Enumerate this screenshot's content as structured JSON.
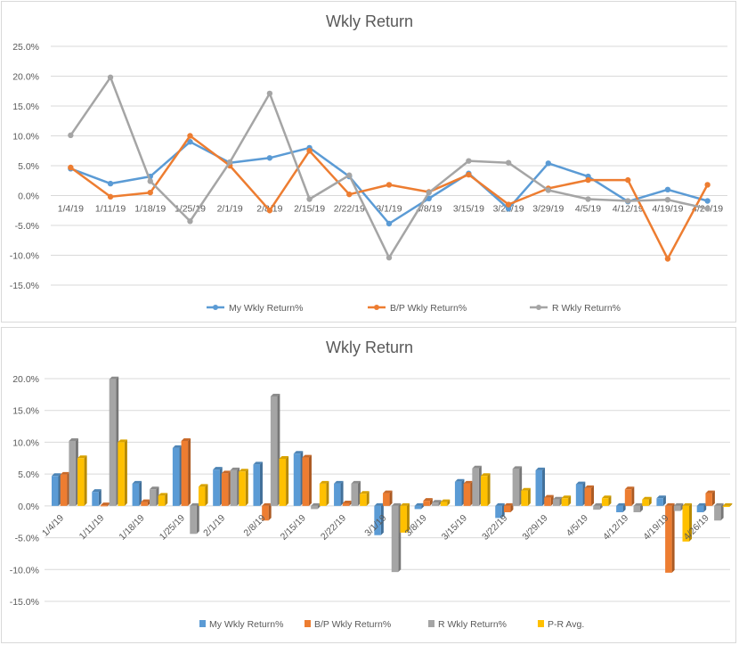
{
  "colors": {
    "my": "#5B9BD5",
    "bp": "#ED7D31",
    "r": "#A5A5A5",
    "pr": "#FFC000",
    "grid": "#d9d9d9"
  },
  "chart_data": [
    {
      "type": "line",
      "title": "Wkly Return",
      "categories": [
        "1/4/19",
        "1/11/19",
        "1/18/19",
        "1/25/19",
        "2/1/19",
        "2/8/19",
        "2/15/19",
        "2/22/19",
        "3/1/19",
        "3/8/19",
        "3/15/19",
        "3/22/19",
        "3/29/19",
        "4/5/19",
        "4/12/19",
        "4/19/19",
        "4/26/19"
      ],
      "y_ticks": [
        "25.0%",
        "20.0%",
        "15.0%",
        "10.0%",
        "5.0%",
        "0.0%",
        "-5.0%",
        "-10.0%",
        "-15.0%"
      ],
      "ylim": [
        -15,
        25
      ],
      "grid": true,
      "legend_position": "bottom",
      "series": [
        {
          "name": "My Wkly Return%",
          "color_key": "my",
          "values": [
            4.5,
            2.0,
            3.2,
            9.0,
            5.5,
            6.3,
            8.0,
            3.2,
            -4.7,
            -0.5,
            3.7,
            -2.2,
            5.4,
            3.2,
            -1.0,
            1.0,
            -0.9
          ]
        },
        {
          "name": "B/P Wkly Return%",
          "color_key": "bp",
          "values": [
            4.7,
            -0.2,
            0.5,
            10.0,
            5.0,
            -2.5,
            7.5,
            0.2,
            1.8,
            0.6,
            3.5,
            -1.5,
            1.2,
            2.6,
            2.6,
            -10.6,
            1.8
          ]
        },
        {
          "name": "R Wkly Return%",
          "color_key": "r",
          "values": [
            10.1,
            19.8,
            2.4,
            -4.3,
            5.6,
            17.1,
            -0.6,
            3.4,
            -10.4,
            0.5,
            5.8,
            5.5,
            0.9,
            -0.6,
            -0.9,
            -0.7,
            -2.2
          ]
        }
      ]
    },
    {
      "type": "bar",
      "title": "Wkly Return",
      "categories": [
        "1/4/19",
        "1/11/19",
        "1/18/19",
        "1/25/19",
        "2/1/19",
        "2/8/19",
        "2/15/19",
        "2/22/19",
        "3/1/19",
        "3/8/19",
        "3/15/19",
        "3/22/19",
        "3/29/19",
        "4/5/19",
        "4/12/19",
        "4/19/19",
        "4/26/19"
      ],
      "y_ticks": [
        "20.0%",
        "15.0%",
        "10.0%",
        "5.0%",
        "0.0%",
        "-5.0%",
        "-10.0%",
        "-15.0%"
      ],
      "ylim": [
        -15,
        20
      ],
      "grid": true,
      "legend_position": "bottom",
      "series": [
        {
          "name": "My Wkly Return%",
          "color_key": "my",
          "values": [
            4.7,
            2.2,
            3.5,
            9.1,
            5.7,
            6.5,
            8.2,
            3.5,
            -4.6,
            -0.5,
            3.8,
            -1.9,
            5.6,
            3.4,
            -1.0,
            1.2,
            -1.0
          ]
        },
        {
          "name": "B/P Wkly Return%",
          "color_key": "bp",
          "values": [
            4.9,
            0.1,
            0.6,
            10.2,
            5.1,
            -2.3,
            7.6,
            0.4,
            2.0,
            0.8,
            3.5,
            -1.0,
            1.3,
            2.8,
            2.6,
            -10.5,
            2.0
          ]
        },
        {
          "name": "R Wkly Return%",
          "color_key": "r",
          "values": [
            10.2,
            19.9,
            2.6,
            -4.4,
            5.6,
            17.2,
            -0.5,
            3.5,
            -10.4,
            0.5,
            5.9,
            5.8,
            1.0,
            -0.6,
            -1.0,
            -0.8,
            -2.3
          ]
        },
        {
          "name": "P-R Avg.",
          "color_key": "pr",
          "values": [
            7.5,
            10.0,
            1.6,
            3.0,
            5.4,
            7.4,
            3.5,
            1.9,
            -4.2,
            0.6,
            4.7,
            2.4,
            1.2,
            1.2,
            1.0,
            -5.6,
            -0.1
          ]
        }
      ]
    }
  ]
}
